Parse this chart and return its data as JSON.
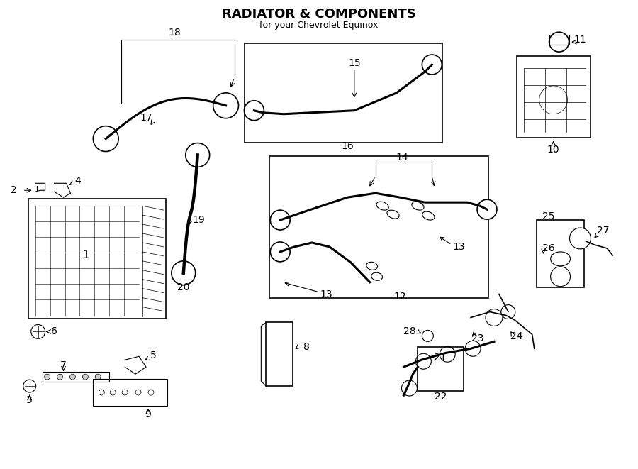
{
  "title": "RADIATOR & COMPONENTS",
  "subtitle": "for your Chevrolet Equinox",
  "bg_color": "#ffffff",
  "line_color": "#000000",
  "fig_width": 9.0,
  "fig_height": 6.61
}
